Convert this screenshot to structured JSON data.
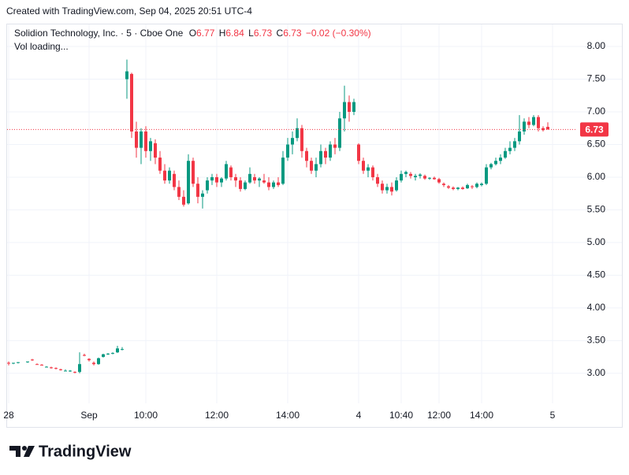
{
  "header": {
    "credit": "Created with TradingView.com, Sep 04, 2025 20:51 UTC-4"
  },
  "branding": {
    "logo_text": "TradingView"
  },
  "chart_data": {
    "type": "candlestick",
    "title": "Solidion Technology, Inc. · 5 · Cboe One",
    "change": "−0.02 (−0.30%)",
    "volume_status": "Vol loading...",
    "up_color": "#089981",
    "down_color": "#f23645",
    "grid": true,
    "ylim": [
      2.54,
      8.35
    ],
    "yticks": [
      {
        "value": 3,
        "label": "3.00"
      },
      {
        "value": 3.5,
        "label": "3.50"
      },
      {
        "value": 4,
        "label": "4.00"
      },
      {
        "value": 4.5,
        "label": "4.50"
      },
      {
        "value": 5,
        "label": "5.00"
      },
      {
        "value": 5.5,
        "label": "5.50"
      },
      {
        "value": 6,
        "label": "6.00"
      },
      {
        "value": 6.5,
        "label": "6.50"
      },
      {
        "value": 7,
        "label": "7.00"
      },
      {
        "value": 7.5,
        "label": "7.50"
      },
      {
        "value": 8,
        "label": "8.00"
      }
    ],
    "categories": [
      "28",
      null,
      null,
      null,
      null,
      null,
      null,
      null,
      null,
      null,
      null,
      null,
      null,
      null,
      null,
      null,
      null,
      "Sep",
      null,
      null,
      null,
      null,
      null,
      null,
      null,
      null,
      null,
      null,
      null,
      "10:00",
      null,
      null,
      null,
      null,
      null,
      null,
      null,
      null,
      null,
      null,
      null,
      null,
      null,
      null,
      "12:00",
      null,
      null,
      null,
      null,
      null,
      null,
      null,
      null,
      null,
      null,
      null,
      null,
      null,
      null,
      "14:00",
      null,
      null,
      null,
      null,
      null,
      null,
      null,
      null,
      null,
      null,
      null,
      null,
      null,
      null,
      "4",
      null,
      null,
      null,
      null,
      null,
      null,
      null,
      null,
      "10:40",
      null,
      null,
      null,
      null,
      null,
      null,
      null,
      "12:00",
      null,
      null,
      null,
      null,
      null,
      null,
      null,
      null,
      "14:00",
      null,
      null,
      null,
      null,
      null,
      null,
      null,
      null,
      null,
      null,
      null,
      null,
      null,
      null,
      "5",
      null,
      null,
      null,
      null
    ],
    "series": [
      {
        "name": "O",
        "values": [
          3.16,
          3.15,
          3.16,
          null,
          3.17,
          3.21,
          3.14,
          3.13,
          3.1,
          3.09,
          3.08,
          3.06,
          3.04,
          3.03,
          3.02,
          3.02,
          3.28,
          3.22,
          3.16,
          3.14,
          3.25,
          3.29,
          3.3,
          3.32,
          3.36,
          7.5,
          7.58,
          6.7,
          6.45,
          6.7,
          6.4,
          6.52,
          6.3,
          6.1,
          5.95,
          6.05,
          5.85,
          5.7,
          5.6,
          6.25,
          5.9,
          5.7,
          5.8,
          5.95,
          6.0,
          5.92,
          5.98,
          6.15,
          6.0,
          5.95,
          5.82,
          5.92,
          6.0,
          5.95,
          5.95,
          5.92,
          5.85,
          5.92,
          5.9,
          6.3,
          6.5,
          6.6,
          6.75,
          6.4,
          6.25,
          6.1,
          6.2,
          6.4,
          6.3,
          6.5,
          6.45,
          6.9,
          7.15,
          7.0,
          6.5,
          6.25,
          6.1,
          6.15,
          6.0,
          5.9,
          5.8,
          5.85,
          5.8,
          5.95,
          6.05,
          6.05,
          6.0,
          6.02,
          6.02,
          5.98,
          5.99,
          5.97,
          5.9,
          5.86,
          5.84,
          5.82,
          5.84,
          5.83,
          5.86,
          5.85,
          5.88,
          5.9,
          6.15,
          6.2,
          6.25,
          6.3,
          6.4,
          6.45,
          6.55,
          6.7,
          6.85,
          6.8,
          6.92,
          6.75,
          6.77,
          null,
          null,
          null,
          null,
          null
        ]
      },
      {
        "name": "H",
        "values": [
          3.18,
          3.16,
          3.17,
          null,
          3.18,
          3.22,
          3.15,
          3.14,
          3.11,
          3.1,
          3.09,
          3.07,
          3.06,
          3.05,
          3.03,
          3.32,
          3.3,
          3.23,
          3.18,
          3.24,
          3.3,
          3.31,
          3.32,
          3.42,
          3.4,
          7.8,
          7.6,
          6.85,
          6.75,
          6.78,
          6.6,
          6.58,
          6.4,
          6.2,
          6.15,
          6.1,
          5.95,
          5.8,
          6.35,
          6.3,
          6.0,
          5.8,
          6.0,
          6.05,
          6.05,
          6.0,
          6.25,
          6.18,
          6.05,
          6.0,
          5.95,
          6.15,
          6.05,
          6.0,
          6.05,
          6.0,
          5.95,
          6.0,
          6.4,
          6.6,
          6.7,
          6.9,
          6.8,
          6.45,
          6.3,
          6.3,
          6.5,
          6.45,
          6.55,
          6.6,
          7.0,
          7.4,
          7.25,
          7.2,
          6.52,
          6.3,
          6.2,
          6.18,
          6.05,
          5.95,
          5.9,
          5.92,
          6.0,
          6.1,
          6.1,
          6.08,
          6.05,
          6.06,
          6.04,
          6.0,
          6.01,
          5.99,
          5.92,
          5.88,
          5.86,
          5.85,
          5.86,
          5.9,
          5.88,
          5.92,
          5.92,
          6.2,
          6.22,
          6.3,
          6.35,
          6.45,
          6.55,
          6.6,
          6.95,
          6.9,
          6.92,
          6.95,
          6.95,
          6.78,
          6.84,
          null,
          null,
          null,
          null,
          null
        ]
      },
      {
        "name": "L",
        "values": [
          3.12,
          3.14,
          3.15,
          null,
          3.16,
          3.19,
          3.13,
          3.12,
          3.09,
          3.07,
          3.06,
          3.04,
          3.03,
          3.02,
          3.0,
          3.0,
          3.26,
          3.18,
          3.12,
          3.13,
          3.24,
          3.28,
          3.29,
          3.31,
          3.35,
          7.2,
          6.6,
          6.3,
          6.2,
          6.3,
          6.25,
          6.2,
          6.05,
          5.9,
          5.9,
          5.8,
          5.65,
          5.55,
          5.58,
          5.85,
          5.6,
          5.52,
          5.75,
          5.88,
          5.85,
          5.85,
          5.95,
          5.95,
          5.85,
          5.78,
          5.8,
          5.9,
          5.9,
          5.85,
          5.9,
          5.8,
          5.82,
          5.85,
          5.88,
          6.25,
          6.35,
          6.55,
          6.3,
          6.15,
          6.05,
          6.0,
          6.15,
          6.2,
          6.25,
          6.35,
          6.4,
          6.7,
          6.85,
          6.95,
          6.2,
          6.05,
          6.0,
          5.95,
          5.85,
          5.75,
          5.75,
          5.72,
          5.78,
          5.92,
          6.0,
          5.98,
          5.95,
          5.98,
          5.96,
          5.96,
          5.96,
          5.9,
          5.85,
          5.82,
          5.8,
          5.8,
          5.81,
          5.82,
          5.82,
          5.83,
          5.86,
          5.88,
          6.12,
          6.18,
          6.2,
          6.28,
          6.35,
          6.4,
          6.5,
          6.65,
          6.75,
          6.78,
          6.7,
          6.7,
          6.73,
          null,
          null,
          null,
          null,
          null
        ]
      },
      {
        "name": "C",
        "values": [
          3.15,
          3.16,
          3.17,
          null,
          3.18,
          3.2,
          3.13,
          3.12,
          3.1,
          3.08,
          3.07,
          3.05,
          3.04,
          3.04,
          3.01,
          3.14,
          3.27,
          3.2,
          3.14,
          3.23,
          3.29,
          3.3,
          3.31,
          3.38,
          3.37,
          7.62,
          6.7,
          6.45,
          6.7,
          6.4,
          6.55,
          6.3,
          6.1,
          5.95,
          6.1,
          5.85,
          5.7,
          5.58,
          6.25,
          5.9,
          5.7,
          5.75,
          5.95,
          6.0,
          5.92,
          5.98,
          6.2,
          6.0,
          5.95,
          5.82,
          5.92,
          6.05,
          5.95,
          5.98,
          5.92,
          5.85,
          5.92,
          5.88,
          6.3,
          6.5,
          6.6,
          6.75,
          6.4,
          6.25,
          6.1,
          6.2,
          6.4,
          6.3,
          6.5,
          6.45,
          6.9,
          7.15,
          7.0,
          7.15,
          6.25,
          6.1,
          6.15,
          6.0,
          5.9,
          5.8,
          5.85,
          5.78,
          5.95,
          6.05,
          6.08,
          6.02,
          6.02,
          6.04,
          5.98,
          5.99,
          5.97,
          5.92,
          5.88,
          5.84,
          5.82,
          5.84,
          5.82,
          5.88,
          5.85,
          5.9,
          5.9,
          6.15,
          6.2,
          6.25,
          6.3,
          6.4,
          6.45,
          6.55,
          6.7,
          6.85,
          6.8,
          6.92,
          6.75,
          6.72,
          6.73,
          null,
          null,
          null,
          null,
          null
        ]
      }
    ]
  }
}
